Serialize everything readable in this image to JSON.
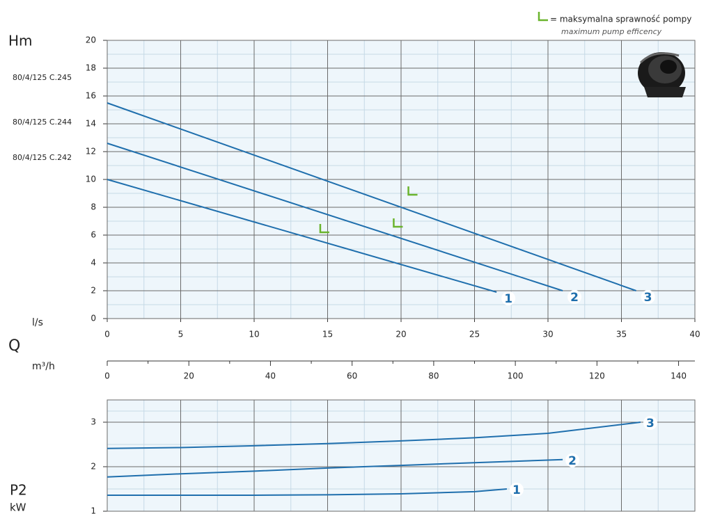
{
  "chart_data": [
    {
      "type": "line",
      "y_label": "Hm",
      "x_label": "l/s",
      "x_symbol": "Q",
      "x2_label": "m³/h",
      "model_labels": [
        "80/4/125 C.245",
        "80/4/125 C.244",
        "80/4/125 C.242"
      ],
      "legend": {
        "marker_color": "#6ab42d",
        "text": "= maksymalna sprawność pompy",
        "subtext": "maximum pump efficency"
      },
      "xlim": [
        0,
        40
      ],
      "xticks": [
        0,
        5,
        10,
        15,
        20,
        25,
        30,
        35,
        40
      ],
      "ylim": [
        0,
        20
      ],
      "yticks": [
        0,
        2,
        4,
        6,
        8,
        10,
        12,
        14,
        16,
        18,
        20
      ],
      "x2lim": [
        0,
        144
      ],
      "x2ticks": [
        0,
        20,
        40,
        60,
        80,
        100,
        120,
        140
      ],
      "grid": true,
      "minor_grid": true,
      "xtick_labels": true,
      "series": [
        {
          "name": "1",
          "color": "#1f6fad",
          "x": [
            0,
            26.5
          ],
          "values": [
            10,
            1.9
          ]
        },
        {
          "name": "2",
          "color": "#1f6fad",
          "x": [
            0,
            31
          ],
          "values": [
            12.6,
            2
          ]
        },
        {
          "name": "3",
          "color": "#1f6fad",
          "x": [
            0,
            36
          ],
          "values": [
            15.5,
            2
          ]
        }
      ],
      "efficiency_points": {
        "color": "#6ab42d",
        "x": [
          14.5,
          19.5,
          20.5
        ],
        "values": [
          6.2,
          6.6,
          8.9
        ]
      }
    },
    {
      "type": "line",
      "y_label": "P2",
      "y_unit": "kW",
      "xlim": [
        0,
        40
      ],
      "xticks": [
        0,
        5,
        10,
        15,
        20,
        25,
        30,
        35,
        40
      ],
      "ylim": [
        1,
        3.5
      ],
      "yticks": [
        1,
        2,
        3
      ],
      "grid": true,
      "minor_grid": true,
      "xtick_labels": false,
      "series": [
        {
          "name": "1",
          "color": "#1f6fad",
          "x": [
            0,
            5,
            10,
            15,
            20,
            25,
            27.2
          ],
          "values": [
            1.36,
            1.36,
            1.36,
            1.37,
            1.39,
            1.44,
            1.5
          ]
        },
        {
          "name": "2",
          "color": "#1f6fad",
          "x": [
            0,
            5,
            10,
            15,
            20,
            25,
            31
          ],
          "values": [
            1.77,
            1.84,
            1.9,
            1.97,
            2.03,
            2.09,
            2.16
          ]
        },
        {
          "name": "3",
          "color": "#1f6fad",
          "x": [
            0,
            5,
            10,
            15,
            20,
            25,
            30,
            36.3
          ],
          "values": [
            2.41,
            2.43,
            2.47,
            2.52,
            2.58,
            2.65,
            2.75,
            3.0
          ]
        }
      ]
    }
  ]
}
